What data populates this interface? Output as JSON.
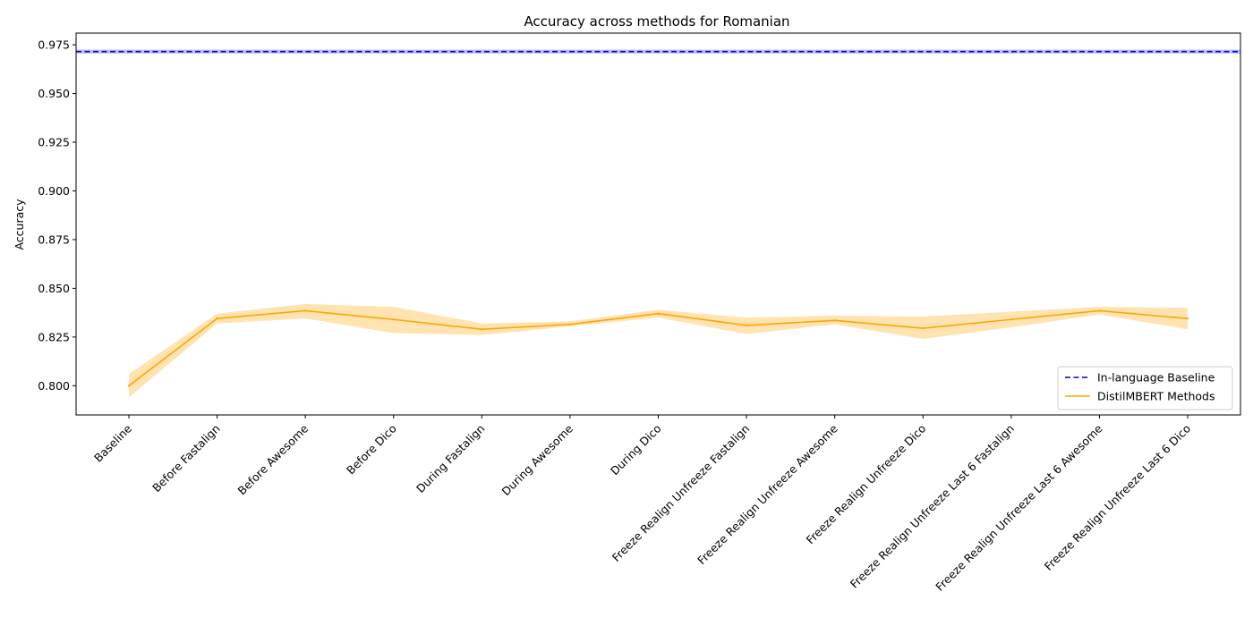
{
  "chart_data": {
    "type": "line",
    "title": "Accuracy across methods for Romanian",
    "xlabel": "",
    "ylabel": "Accuracy",
    "categories": [
      "Baseline",
      "Before Fastalign",
      "Before Awesome",
      "Before Dico",
      "During Fastalign",
      "During Awesome",
      "During Dico",
      "Freeze Realign Unfreeze Fastalign",
      "Freeze Realign Unfreeze Awesome",
      "Freeze Realign Unfreeze Dico",
      "Freeze Realign Unfreeze Last 6 Fastalign",
      "Freeze Realign Unfreeze Last 6 Awesome",
      "Freeze Realign Unfreeze Last 6 Dico"
    ],
    "series": [
      {
        "name": "DistilMBERT Methods",
        "color": "#FFA500",
        "values": [
          0.8,
          0.8345,
          0.8385,
          0.834,
          0.829,
          0.8315,
          0.837,
          0.831,
          0.8335,
          0.8295,
          0.834,
          0.8385,
          0.8345
        ],
        "lower": [
          0.794,
          0.832,
          0.8345,
          0.827,
          0.826,
          0.8305,
          0.835,
          0.8265,
          0.8315,
          0.824,
          0.83,
          0.8365,
          0.829
        ],
        "upper": [
          0.806,
          0.837,
          0.842,
          0.8405,
          0.832,
          0.833,
          0.839,
          0.835,
          0.836,
          0.8355,
          0.838,
          0.8405,
          0.84
        ]
      }
    ],
    "baseline": {
      "name": "In-language Baseline",
      "color": "#0000CD",
      "value": 0.9715,
      "lower": 0.9705,
      "upper": 0.9725
    },
    "ylim": [
      0.785,
      0.981
    ],
    "yticks": [
      "0.800",
      "0.825",
      "0.850",
      "0.875",
      "0.900",
      "0.925",
      "0.950",
      "0.975"
    ],
    "grid": false,
    "legend_position": "lower-right"
  }
}
